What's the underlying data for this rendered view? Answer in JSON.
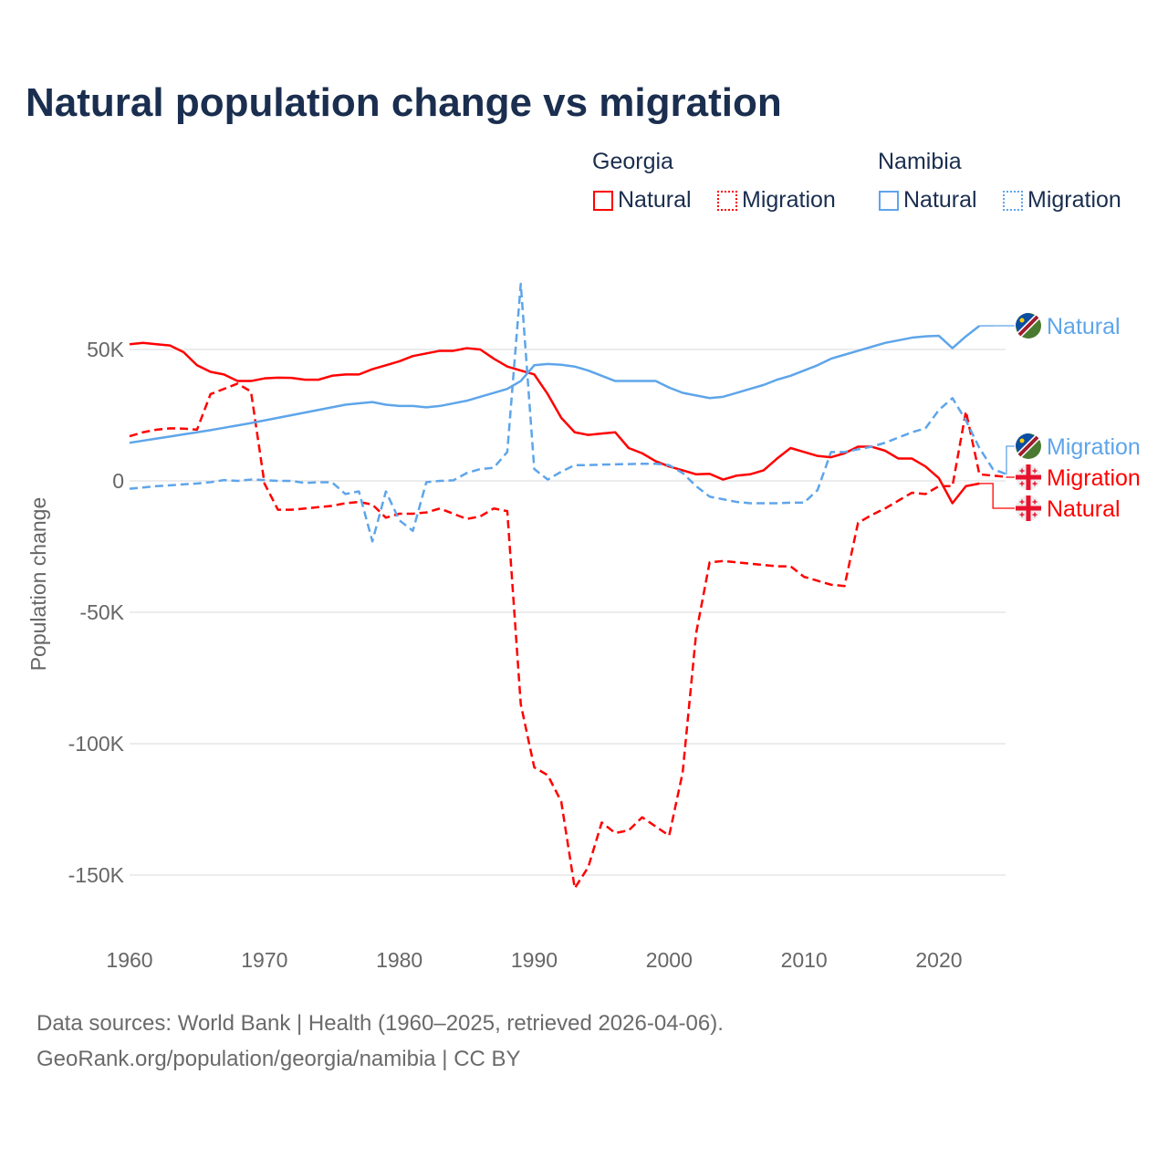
{
  "title": "Natural population change vs migration",
  "legend": {
    "groups": [
      {
        "name": "Georgia",
        "items": [
          "Natural",
          "Migration"
        ]
      },
      {
        "name": "Namibia",
        "items": [
          "Natural",
          "Migration"
        ]
      }
    ]
  },
  "footer": {
    "line1": "Data sources: World Bank | Health (1960–2025, retrieved 2026-04-06).",
    "line2": "GeoRank.org/population/georgia/namibia | CC BY"
  },
  "colors": {
    "georgia": "#ff0000",
    "namibia": "#5ea5ea"
  },
  "chart_data": {
    "type": "line",
    "title": "Natural population change vs migration",
    "xlabel": "",
    "ylabel": "Population change",
    "xlim": [
      1960,
      2025
    ],
    "ylim": [
      -165000,
      80000
    ],
    "x_ticks": [
      1960,
      1970,
      1980,
      1990,
      2000,
      2010,
      2020
    ],
    "y_ticks": [
      {
        "v": 50000,
        "label": "50K"
      },
      {
        "v": 0,
        "label": "0"
      },
      {
        "v": -50000,
        "label": "-50K"
      },
      {
        "v": -100000,
        "label": "-100K"
      },
      {
        "v": -150000,
        "label": "-150K"
      }
    ],
    "grid": true,
    "series": [
      {
        "name": "Natural",
        "country": "Georgia",
        "style": "solid",
        "color": "#ff0000",
        "end_label": "Natural",
        "start": 1960,
        "values_k": [
          52,
          52.5,
          52,
          51.5,
          49,
          44,
          41.5,
          40.5,
          38,
          38,
          39,
          39.3,
          39.2,
          38.5,
          38.5,
          40,
          40.5,
          40.5,
          42.5,
          44,
          45.5,
          47.5,
          48.5,
          49.5,
          49.5,
          50.5,
          50,
          46.5,
          43.5,
          42,
          40.5,
          33,
          24,
          18.5,
          17.5,
          18,
          18.5,
          12.5,
          10.5,
          7.5,
          5.5,
          4,
          2.5,
          2.7,
          0.5,
          2,
          2.5,
          4,
          8.5,
          12.5,
          11,
          9.5,
          9,
          10.5,
          13,
          13,
          11.5,
          8.5,
          8.5,
          5.5,
          1,
          -8.5,
          -2,
          -1
        ]
      },
      {
        "name": "Migration",
        "country": "Georgia",
        "style": "dashed",
        "color": "#ff0000",
        "end_label": "Migration",
        "start": 1960,
        "values_k": [
          17,
          18.5,
          19.5,
          20,
          19.9,
          19.5,
          33,
          35,
          37,
          34,
          -1,
          -11,
          -11,
          -10.5,
          -10,
          -9.5,
          -8.5,
          -8,
          -9,
          -14,
          -12.5,
          -12.5,
          -12,
          -10.5,
          -12.5,
          -14.5,
          -13.5,
          -10.5,
          -11.5,
          -85,
          -109,
          -112,
          -122,
          -155,
          -147,
          -130,
          -134,
          -133,
          -128,
          -131.5,
          -135,
          -111,
          -58,
          -31,
          -30.5,
          -31,
          -31.5,
          -32,
          -32.5,
          -32.5,
          -36.5,
          -38,
          -39.5,
          -40,
          -16,
          -13,
          -10.5,
          -7.5,
          -4.5,
          -5,
          -2,
          -2,
          26.5,
          2.5,
          2,
          1.5
        ]
      },
      {
        "name": "Natural",
        "country": "Namibia",
        "style": "solid",
        "color": "#5ea5ea",
        "end_label": "Natural",
        "start": 1960,
        "values_k": [
          14.5,
          15.3,
          16.1,
          16.9,
          17.7,
          18.5,
          19.3,
          20.2,
          21.1,
          22,
          23,
          24,
          25,
          26,
          27,
          28,
          29,
          29.5,
          30,
          29,
          28.5,
          28.5,
          28,
          28.5,
          29.5,
          30.5,
          32,
          33.5,
          35,
          38,
          44,
          44.5,
          44.2,
          43.5,
          42,
          40,
          38,
          38,
          38,
          38,
          35.5,
          33.5,
          32.5,
          31.5,
          32,
          33.5,
          35,
          36.5,
          38.5,
          40,
          42,
          44,
          46.5,
          48,
          49.5,
          51,
          52.5,
          53.5,
          54.5,
          55,
          55.2,
          50.5,
          55,
          59
        ]
      },
      {
        "name": "Migration",
        "country": "Namibia",
        "style": "dashed",
        "color": "#5ea5ea",
        "end_label": "Migration",
        "start": 1960,
        "values_k": [
          -3,
          -2.5,
          -2,
          -1.7,
          -1.3,
          -1,
          -0.5,
          0.3,
          0,
          0.5,
          0.3,
          0,
          0,
          -0.8,
          -0.5,
          -0.5,
          -5,
          -4,
          -23,
          -4,
          -15,
          -19,
          -0.5,
          0,
          0.2,
          3,
          4.5,
          5,
          11,
          75,
          4.5,
          0.5,
          3.5,
          6,
          6,
          6.2,
          6.3,
          6.4,
          6.5,
          6.5,
          6,
          3,
          -2,
          -6,
          -7,
          -8,
          -8.5,
          -8.5,
          -8.5,
          -8.3,
          -8.3,
          -3.5,
          11,
          11,
          12,
          13,
          14.5,
          16.5,
          18.5,
          20,
          27,
          31.5,
          23,
          12.5,
          4.5,
          2.5
        ]
      }
    ]
  }
}
